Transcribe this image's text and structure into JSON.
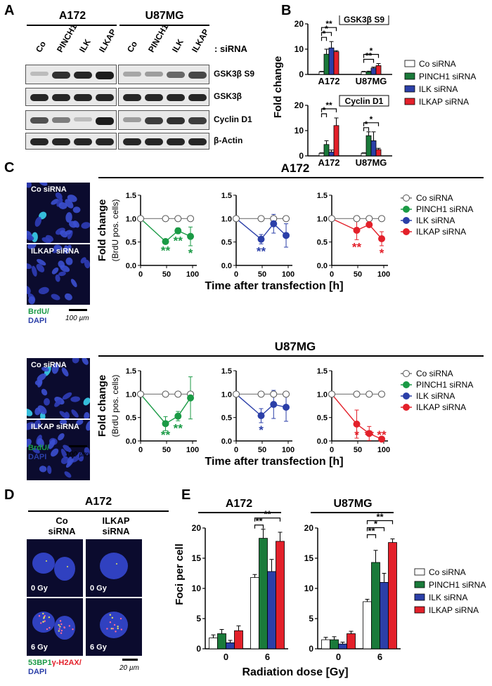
{
  "panels": {
    "A": "A",
    "B": "B",
    "C": "C",
    "D": "D",
    "E": "E"
  },
  "A": {
    "cell_lines": [
      "A172",
      "U87MG"
    ],
    "lanes": [
      "Co",
      "PINCH1",
      "ILK",
      "ILKAP"
    ],
    "sirna_label": ": siRNA",
    "blots": [
      "GSK3β S9",
      "GSK3β",
      "Cyclin D1",
      "β-Actin"
    ],
    "intensity": {
      "GSK3β S9": [
        [
          0.2,
          0.85,
          0.9,
          0.95
        ],
        [
          0.3,
          0.35,
          0.6,
          0.75
        ]
      ],
      "GSK3β": [
        [
          0.9,
          0.9,
          0.9,
          0.9
        ],
        [
          0.9,
          0.9,
          0.9,
          0.9
        ]
      ],
      "Cyclin D1": [
        [
          0.7,
          0.5,
          0.2,
          0.95
        ],
        [
          0.35,
          0.8,
          0.85,
          0.8
        ]
      ],
      "β-Actin": [
        [
          0.9,
          0.9,
          0.9,
          0.9
        ],
        [
          0.9,
          0.9,
          0.9,
          0.9
        ]
      ]
    }
  },
  "B": {
    "ylabel": "Fold change",
    "legend": [
      "Co siRNA",
      "PINCH1 siRNA",
      "ILK siRNA",
      "ILKAP siRNA"
    ],
    "colors": {
      "co": "#ffffff",
      "pinch1": "#1a7a3a",
      "ilk": "#2b3fa8",
      "ilkap": "#e3202a"
    }
  },
  "C": {
    "lines": [
      "A172",
      "U87MG"
    ],
    "micro_labels": [
      "Co siRNA",
      "ILKAP siRNA"
    ],
    "stain_green": "BrdU/",
    "stain_blue": "DAPI",
    "scale": "100 µm",
    "ylabel1": "Fold change",
    "ylabel2": "(BrdU pos. cells)",
    "xlabel": "Time after transfection [h]",
    "legend": [
      "Co siRNA",
      "PINCH1 siRNA",
      "ILK siRNA",
      "ILKAP siRNA"
    ]
  },
  "D": {
    "title": "A172",
    "col1": [
      "Co",
      "siRNA"
    ],
    "col2": [
      "ILKAP",
      "siRNA"
    ],
    "dose0": "0 Gy",
    "dose6": "6 Gy",
    "stain1": "53BP1",
    "stain2": "γ-H2AX/",
    "stain3": "DAPI",
    "scale": "20 µm"
  },
  "E": {
    "ylabel": "Foci per cell",
    "xlabel": "Radiation dose [Gy]",
    "legend": [
      "Co siRNA",
      "PINCH1 siRNA",
      "ILK siRNA",
      "ILKAP siRNA"
    ]
  },
  "chart_data": [
    {
      "type": "bar",
      "panel": "B",
      "title": "GSK3β S9",
      "categories": [
        "A172",
        "U87MG"
      ],
      "series": [
        {
          "name": "Co siRNA",
          "values": [
            1,
            1
          ],
          "err": [
            0.2,
            0.2
          ]
        },
        {
          "name": "PINCH1 siRNA",
          "values": [
            8,
            1
          ],
          "err": [
            2,
            0.3
          ]
        },
        {
          "name": "ILK siRNA",
          "values": [
            10.5,
            2.5
          ],
          "err": [
            2.5,
            0.4
          ]
        },
        {
          "name": "ILKAP siRNA",
          "values": [
            9,
            3.5
          ],
          "err": [
            0.4,
            0.8
          ]
        }
      ],
      "ylim": [
        0,
        20
      ],
      "yticks": [
        0,
        10,
        20
      ],
      "sig": [
        {
          "cat": 0,
          "from": 0,
          "to": 1,
          "text": "*"
        },
        {
          "cat": 0,
          "from": 0,
          "to": 2,
          "text": "*"
        },
        {
          "cat": 0,
          "from": 0,
          "to": 3,
          "text": "**"
        },
        {
          "cat": 1,
          "from": 0,
          "to": 2,
          "text": "**"
        },
        {
          "cat": 1,
          "from": 0,
          "to": 3,
          "text": "*"
        }
      ]
    },
    {
      "type": "bar",
      "panel": "B",
      "title": "Cyclin D1",
      "categories": [
        "A172",
        "U87MG"
      ],
      "series": [
        {
          "name": "Co siRNA",
          "values": [
            1,
            1
          ],
          "err": [
            0.2,
            0.2
          ]
        },
        {
          "name": "PINCH1 siRNA",
          "values": [
            4.5,
            8
          ],
          "err": [
            1.5,
            1.5
          ]
        },
        {
          "name": "ILK siRNA",
          "values": [
            1.5,
            6
          ],
          "err": [
            0.8,
            3.5
          ]
        },
        {
          "name": "ILKAP siRNA",
          "values": [
            12,
            2.5
          ],
          "err": [
            3,
            0.5
          ]
        }
      ],
      "ylim": [
        0,
        20
      ],
      "yticks": [
        0,
        10,
        20
      ],
      "sig": [
        {
          "cat": 0,
          "from": 0,
          "to": 1,
          "text": "*"
        },
        {
          "cat": 0,
          "from": 0,
          "to": 3,
          "text": "**"
        },
        {
          "cat": 1,
          "from": 0,
          "to": 1,
          "text": "*"
        },
        {
          "cat": 1,
          "from": 0,
          "to": 3,
          "text": "*"
        }
      ]
    },
    {
      "type": "line",
      "panel": "C",
      "line": "A172",
      "x": [
        0,
        48,
        72,
        96
      ],
      "ylim": [
        0,
        1.5
      ],
      "yticks": [
        0,
        0.5,
        1.0,
        1.5
      ],
      "xticks": [
        0,
        50,
        100
      ],
      "subplots": [
        {
          "name": "PINCH1 siRNA",
          "color": "#1a9a45",
          "values": [
            1,
            0.51,
            0.74,
            0.62
          ],
          "err": [
            0,
            0.04,
            0.06,
            0.2
          ],
          "stars": [
            "",
            "**",
            "**",
            "*"
          ]
        },
        {
          "name": "ILK siRNA",
          "color": "#2b3fa8",
          "values": [
            1,
            0.56,
            0.89,
            0.64
          ],
          "err": [
            0,
            0.1,
            0.2,
            0.25
          ],
          "stars": [
            "",
            "**",
            "",
            ""
          ]
        },
        {
          "name": "ILKAP siRNA",
          "color": "#e3202a",
          "values": [
            1,
            0.75,
            0.87,
            0.57
          ],
          "err": [
            0,
            0.2,
            0.02,
            0.15
          ],
          "stars": [
            "",
            "**",
            "",
            "*"
          ]
        }
      ],
      "control": {
        "name": "Co siRNA",
        "values": [
          1,
          1,
          1,
          1
        ]
      }
    },
    {
      "type": "line",
      "panel": "C",
      "line": "U87MG",
      "x": [
        0,
        48,
        72,
        96
      ],
      "ylim": [
        0,
        1.5
      ],
      "yticks": [
        0,
        0.5,
        1.0,
        1.5
      ],
      "xticks": [
        0,
        50,
        100
      ],
      "subplots": [
        {
          "name": "PINCH1 siRNA",
          "color": "#1a9a45",
          "values": [
            1,
            0.37,
            0.53,
            0.92
          ],
          "err": [
            0,
            0.15,
            0.1,
            0.45
          ],
          "stars": [
            "",
            "**",
            "**",
            ""
          ]
        },
        {
          "name": "ILK siRNA",
          "color": "#2b3fa8",
          "values": [
            1,
            0.54,
            0.78,
            0.72
          ],
          "err": [
            0,
            0.15,
            0.3,
            0.3
          ],
          "stars": [
            "",
            "*",
            "",
            ""
          ]
        },
        {
          "name": "ILKAP siRNA",
          "color": "#e3202a",
          "values": [
            1,
            0.36,
            0.16,
            0.04
          ],
          "err": [
            0,
            0.3,
            0.15,
            0.05
          ],
          "stars": [
            "",
            "*",
            "**",
            "**"
          ]
        }
      ],
      "control": {
        "name": "Co siRNA",
        "values": [
          1,
          1,
          1,
          1
        ]
      }
    },
    {
      "type": "bar",
      "panel": "E",
      "title": "A172",
      "categories": [
        "0",
        "6"
      ],
      "series": [
        {
          "name": "Co siRNA",
          "values": [
            1.8,
            11.8
          ],
          "err": [
            0.5,
            0.5
          ]
        },
        {
          "name": "PINCH1 siRNA",
          "values": [
            2.5,
            18.3
          ],
          "err": [
            0.7,
            1.5
          ]
        },
        {
          "name": "ILK siRNA",
          "values": [
            1,
            12.8
          ],
          "err": [
            0.4,
            2
          ]
        },
        {
          "name": "ILKAP siRNA",
          "values": [
            3,
            17.8
          ],
          "err": [
            0.8,
            1.5
          ]
        }
      ],
      "ylim": [
        0,
        20
      ],
      "yticks": [
        0,
        5,
        10,
        15,
        20
      ],
      "sig": [
        {
          "cat": 1,
          "from": 0,
          "to": 1,
          "text": "**"
        },
        {
          "cat": 1,
          "from": 0,
          "to": 3,
          "text": "**"
        }
      ]
    },
    {
      "type": "bar",
      "panel": "E",
      "title": "U87MG",
      "categories": [
        "0",
        "6"
      ],
      "series": [
        {
          "name": "Co siRNA",
          "values": [
            1.5,
            7.8
          ],
          "err": [
            0.4,
            0.4
          ]
        },
        {
          "name": "PINCH1 siRNA",
          "values": [
            1.5,
            14.3
          ],
          "err": [
            0.5,
            2
          ]
        },
        {
          "name": "ILK siRNA",
          "values": [
            0.8,
            11
          ],
          "err": [
            0.3,
            1.5
          ]
        },
        {
          "name": "ILKAP siRNA",
          "values": [
            2.5,
            17.6
          ],
          "err": [
            0.4,
            0.6
          ]
        }
      ],
      "ylim": [
        0,
        20
      ],
      "yticks": [
        0,
        5,
        10,
        15,
        20
      ],
      "sig": [
        {
          "cat": 1,
          "from": 0,
          "to": 1,
          "text": "**"
        },
        {
          "cat": 1,
          "from": 0,
          "to": 2,
          "text": "*"
        },
        {
          "cat": 1,
          "from": 0,
          "to": 3,
          "text": "**"
        }
      ]
    }
  ]
}
